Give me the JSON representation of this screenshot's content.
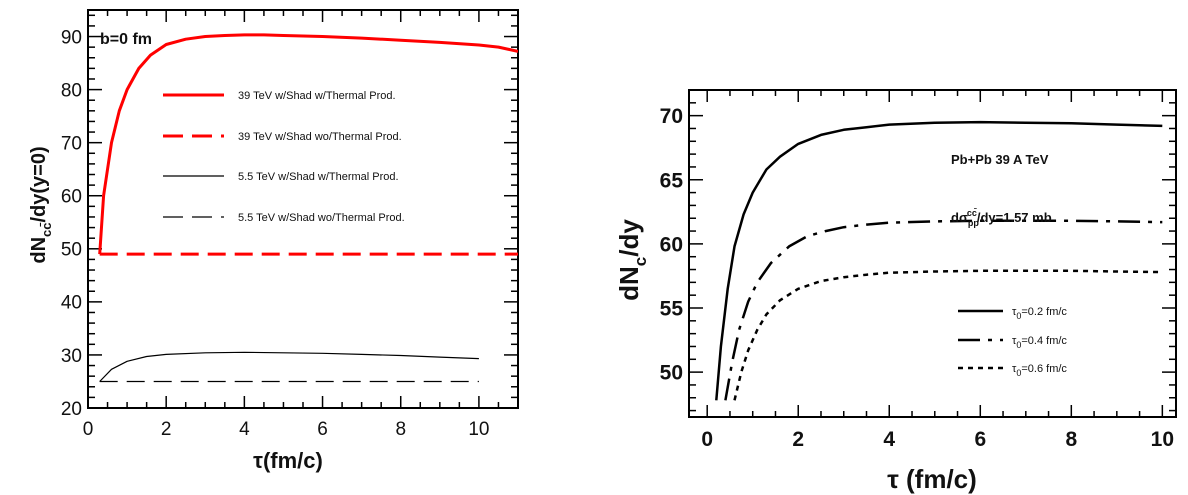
{
  "chart_data": [
    {
      "type": "line",
      "xlabel": "τ(fm/c)",
      "ylabel": "dN_cc̄/dy(y=0)",
      "xlim": [
        0,
        11
      ],
      "ylim": [
        20,
        95
      ],
      "xticks": [
        0,
        2,
        4,
        6,
        8,
        10
      ],
      "yticks": [
        20,
        30,
        40,
        50,
        60,
        70,
        80,
        90
      ],
      "annotation": "b=0 fm",
      "legend_placement": "center",
      "series": [
        {
          "name": "39 TeV w/Shad w/Thermal Prod.",
          "color": "#ff0000",
          "style": "solid",
          "width": 3,
          "x": [
            0.3,
            0.4,
            0.6,
            0.8,
            1.0,
            1.3,
            1.6,
            2.0,
            2.5,
            3.0,
            3.5,
            4.0,
            4.5,
            5.0,
            6.0,
            7.0,
            8.0,
            9.0,
            10.0,
            10.5,
            11.0
          ],
          "y": [
            49,
            60,
            70,
            76,
            80,
            84,
            86.5,
            88.5,
            89.5,
            90.0,
            90.2,
            90.3,
            90.3,
            90.2,
            90.0,
            89.7,
            89.3,
            88.9,
            88.4,
            88.0,
            87.2
          ]
        },
        {
          "name": "39 TeV w/Shad wo/Thermal Prod.",
          "color": "#ff0000",
          "style": "dashed",
          "width": 3,
          "x": [
            0.3,
            11.0
          ],
          "y": [
            49,
            49
          ]
        },
        {
          "name": "5.5 TeV w/Shad w/Thermal Prod.",
          "color": "#000000",
          "style": "solid",
          "width": 1.2,
          "x": [
            0.3,
            0.6,
            1.0,
            1.5,
            2.0,
            3.0,
            4.0,
            5.0,
            6.0,
            7.0,
            8.0,
            9.0,
            10.0
          ],
          "y": [
            25,
            27.3,
            28.8,
            29.7,
            30.1,
            30.4,
            30.5,
            30.4,
            30.3,
            30.1,
            29.9,
            29.6,
            29.3
          ]
        },
        {
          "name": "5.5 TeV w/Shad wo/Thermal Prod.",
          "color": "#000000",
          "style": "dashed",
          "width": 1.2,
          "x": [
            0.3,
            10.0
          ],
          "y": [
            25,
            25
          ]
        }
      ]
    },
    {
      "type": "line",
      "xlabel": "τ (fm/c)",
      "ylabel": "dN_c/dy",
      "xlim": [
        -0.4,
        10.3
      ],
      "ylim": [
        46.5,
        72
      ],
      "xticks": [
        0,
        2,
        4,
        6,
        8,
        10
      ],
      "yticks": [
        50,
        55,
        60,
        65,
        70
      ],
      "annotations": [
        "Pb+Pb 39 A TeV",
        "dσ_pp^cc̄/dy=1.57 mb"
      ],
      "legend_placement": "bottom-right",
      "series": [
        {
          "name": "τ_0=0.2 fm/c",
          "color": "#000000",
          "style": "solid",
          "width": 2.5,
          "x": [
            0.2,
            0.3,
            0.45,
            0.6,
            0.8,
            1.0,
            1.3,
            1.6,
            2.0,
            2.5,
            3.0,
            3.5,
            4.0,
            5.0,
            6.0,
            7.0,
            8.0,
            9.0,
            10.0
          ],
          "y": [
            47.8,
            52,
            56.5,
            59.8,
            62.3,
            64.0,
            65.8,
            66.8,
            67.8,
            68.5,
            68.9,
            69.1,
            69.3,
            69.45,
            69.5,
            69.45,
            69.4,
            69.3,
            69.2
          ]
        },
        {
          "name": "τ_0=0.4 fm/c",
          "color": "#000000",
          "style": "longdash",
          "width": 2.5,
          "x": [
            0.4,
            0.55,
            0.7,
            0.9,
            1.1,
            1.4,
            1.8,
            2.2,
            2.6,
            3.0,
            3.5,
            4.0,
            5.0,
            6.0,
            7.0,
            8.0,
            9.0,
            10.0
          ],
          "y": [
            47.8,
            50.8,
            53.3,
            55.5,
            57.0,
            58.5,
            59.8,
            60.6,
            61.0,
            61.3,
            61.5,
            61.65,
            61.75,
            61.8,
            61.8,
            61.8,
            61.75,
            61.7
          ]
        },
        {
          "name": "τ_0=0.6 fm/c",
          "color": "#000000",
          "style": "dotted",
          "width": 2.5,
          "x": [
            0.6,
            0.75,
            0.9,
            1.1,
            1.3,
            1.6,
            2.0,
            2.5,
            3.0,
            3.5,
            4.0,
            5.0,
            6.0,
            7.0,
            8.0,
            9.0,
            10.0
          ],
          "y": [
            47.8,
            50.0,
            51.7,
            53.3,
            54.5,
            55.6,
            56.5,
            57.1,
            57.4,
            57.6,
            57.75,
            57.85,
            57.9,
            57.9,
            57.9,
            57.85,
            57.8
          ]
        }
      ]
    }
  ]
}
